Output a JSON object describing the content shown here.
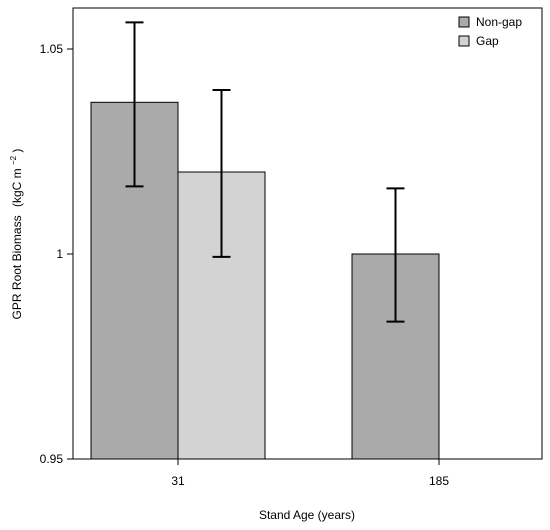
{
  "chart_data": {
    "type": "bar",
    "xlabel": "Stand Age (years)",
    "ylabel_main": "GPR Root Biomass",
    "ylabel_unit_base": "(kgC m",
    "ylabel_unit_sup": "−2",
    "ylabel_unit_end": ")",
    "ylim": [
      0.95,
      1.06
    ],
    "yticks": [
      {
        "value": 0.95,
        "label": "0.95"
      },
      {
        "value": 1.0,
        "label": "1"
      },
      {
        "value": 1.05,
        "label": "1.05"
      }
    ],
    "categories": [
      "31",
      "185"
    ],
    "series": [
      {
        "name": "Non-gap",
        "color": "#aaaaaa",
        "values": [
          1.037,
          1.0
        ],
        "err_low": [
          1.0165,
          0.9835
        ],
        "err_high": [
          1.0565,
          1.016
        ]
      },
      {
        "name": "Gap",
        "color": "#d3d3d3",
        "values": [
          1.02,
          null
        ],
        "err_low": [
          0.9993,
          null
        ],
        "err_high": [
          1.04,
          null
        ]
      }
    ],
    "legend_position": "top-right",
    "grid": false
  }
}
